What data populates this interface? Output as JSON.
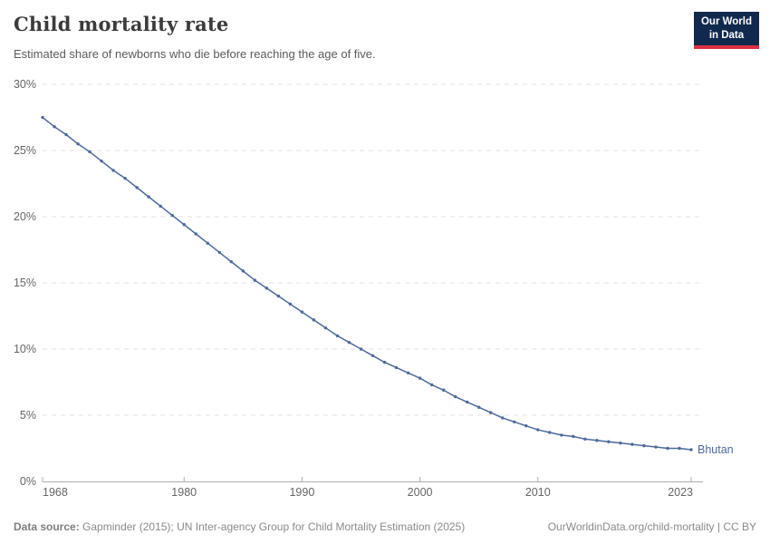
{
  "header": {
    "title": "Child mortality rate",
    "subtitle": "Estimated share of newborns who die before reaching the age of five.",
    "logo": {
      "line1": "Our World",
      "line2": "in Data",
      "bg_color": "#12294e",
      "accent_color": "#dc2f42"
    }
  },
  "chart_data": {
    "type": "line",
    "title": "Child mortality rate",
    "subtitle": "Estimated share of newborns who die before reaching the age of five.",
    "unit": "%",
    "xlim": [
      1968,
      2023
    ],
    "ylim": [
      0,
      30
    ],
    "x_ticks": [
      1968,
      1980,
      1990,
      2000,
      2010,
      2023
    ],
    "y_ticks": [
      0,
      5,
      10,
      15,
      20,
      25,
      30
    ],
    "grid": "horizontal-dashed",
    "legend_position": "end-of-line",
    "series": [
      {
        "name": "Bhutan",
        "color": "#4c6a9c",
        "x": [
          1968,
          1969,
          1970,
          1971,
          1972,
          1973,
          1974,
          1975,
          1976,
          1977,
          1978,
          1979,
          1980,
          1981,
          1982,
          1983,
          1984,
          1985,
          1986,
          1987,
          1988,
          1989,
          1990,
          1991,
          1992,
          1993,
          1994,
          1995,
          1996,
          1997,
          1998,
          1999,
          2000,
          2001,
          2002,
          2003,
          2004,
          2005,
          2006,
          2007,
          2008,
          2009,
          2010,
          2011,
          2012,
          2013,
          2014,
          2015,
          2016,
          2017,
          2018,
          2019,
          2020,
          2021,
          2022,
          2023
        ],
        "values": [
          27.5,
          26.8,
          26.2,
          25.5,
          24.9,
          24.2,
          23.5,
          22.9,
          22.2,
          21.5,
          20.8,
          20.1,
          19.4,
          18.7,
          18.0,
          17.3,
          16.6,
          15.9,
          15.2,
          14.6,
          14.0,
          13.4,
          12.8,
          12.2,
          11.6,
          11.0,
          10.5,
          10.0,
          9.5,
          9.0,
          8.6,
          8.2,
          7.8,
          7.3,
          6.9,
          6.4,
          6.0,
          5.6,
          5.2,
          4.8,
          4.5,
          4.2,
          3.9,
          3.7,
          3.5,
          3.4,
          3.2,
          3.1,
          3.0,
          2.9,
          2.8,
          2.7,
          2.6,
          2.5,
          2.5,
          2.4
        ]
      }
    ],
    "colors": {
      "grid": "#e0e0e0",
      "axis": "#afafaf",
      "tick_label": "#666666"
    }
  },
  "footer": {
    "source_label": "Data source:",
    "source_text": "Gapminder (2015); UN Inter-agency Group for Child Mortality Estimation (2025)",
    "link_text": "OurWorldinData.org/child-mortality | CC BY"
  }
}
